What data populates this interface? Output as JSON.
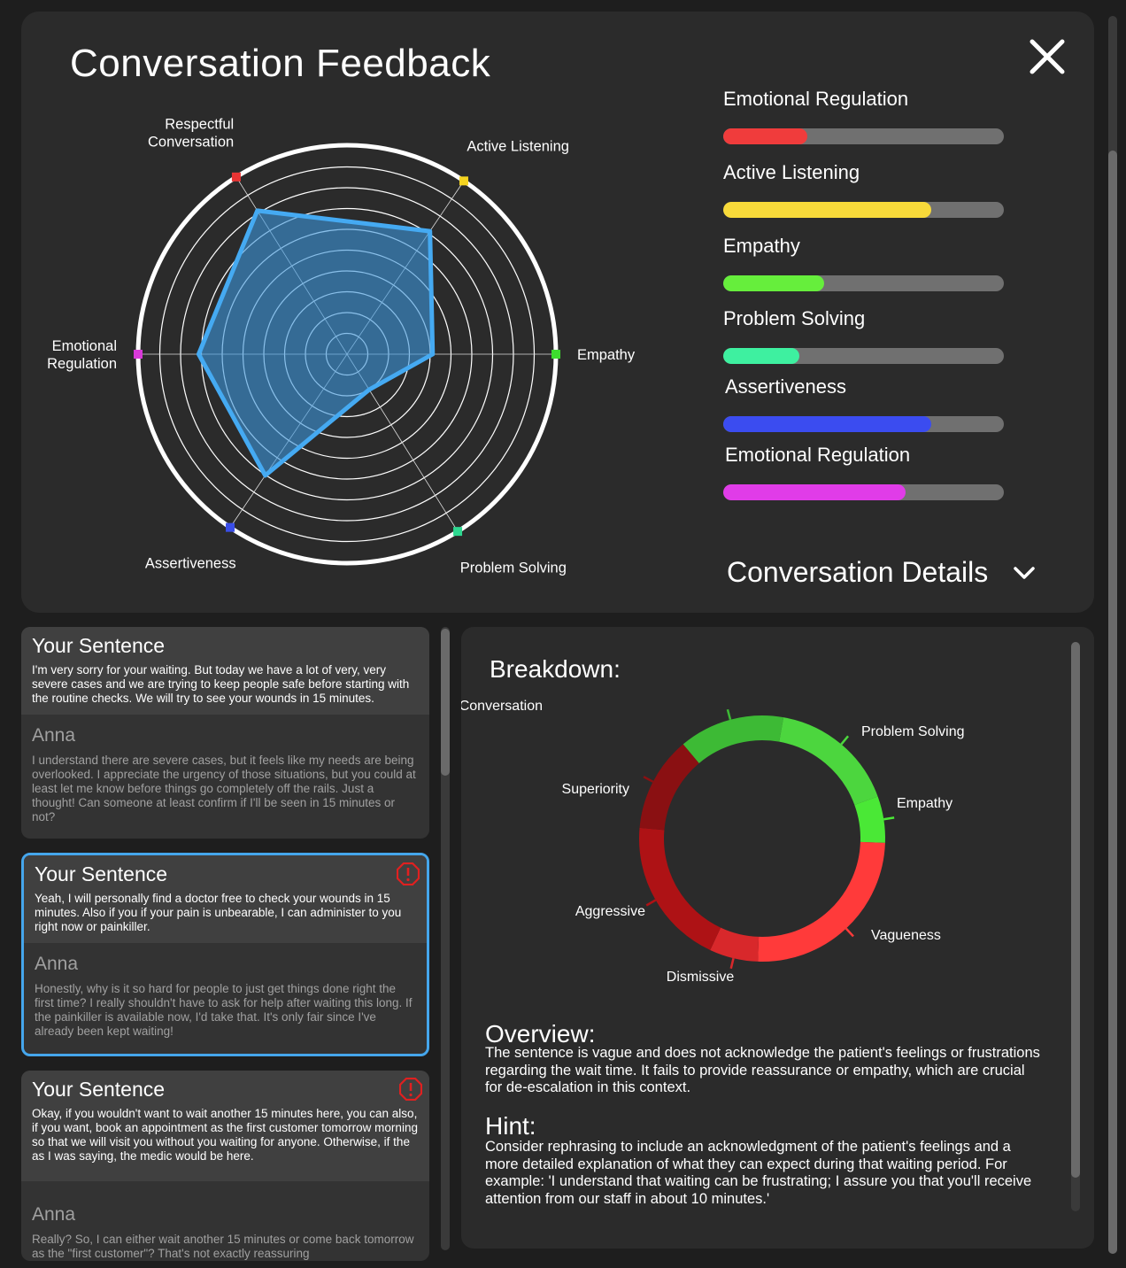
{
  "header": {
    "title": "Conversation Feedback",
    "close_icon": "close-icon"
  },
  "radar": {
    "axes": [
      {
        "label": "Empathy",
        "value": 0.41,
        "color": "#3ddc2e",
        "angle": 0
      },
      {
        "label": "Active Listening",
        "value": 0.71,
        "color": "#f5d420",
        "angle": 56
      },
      {
        "label": "Respectful\nConversation",
        "value": 0.81,
        "color": "#e83434",
        "angle": 122
      },
      {
        "label": "Emotional\nRegulation",
        "value": 0.71,
        "color": "#d83ad8",
        "angle": 180
      },
      {
        "label": "Assertiveness",
        "value": 0.7,
        "color": "#3a4ee8",
        "angle": 236
      },
      {
        "label": "Problem Solving",
        "value": 0.2,
        "color": "#2ed890",
        "angle": 302
      }
    ]
  },
  "bars": [
    {
      "label": "Emotional Regulation",
      "value": 0.3,
      "color": "#f03c3c"
    },
    {
      "label": "Active Listening",
      "value": 0.74,
      "color": "#f8da3a"
    },
    {
      "label": "Empathy",
      "value": 0.36,
      "color": "#66ee3c"
    },
    {
      "label": "Problem Solving",
      "value": 0.27,
      "color": "#3ef0a0"
    },
    {
      "label": "Assertiveness",
      "value": 0.74,
      "color": "#3b4cf0"
    },
    {
      "label": "Emotional Regulation",
      "value": 0.65,
      "color": "#e03ce8"
    }
  ],
  "details_label": "Conversation Details",
  "conversation": [
    {
      "you_title": "Your Sentence",
      "you_text": "I'm very sorry for your waiting. But today we have a lot of very, very severe cases and we are trying to keep people safe before starting with the routine checks. We will try to see your wounds in 15 minutes.",
      "anna_title": "Anna",
      "anna_text": "I understand there are severe cases, but it feels like my needs are being overlooked. I appreciate the urgency of those situations, but you could at least let me know before things go completely off the rails. Just a thought! Can someone at least confirm if I'll be seen in 15 minutes or not?",
      "warning": false
    },
    {
      "you_title": "Your Sentence",
      "you_text": "Yeah, I will personally find a doctor free to check your wounds in 15 minutes. Also if you if your pain is unbearable, I can administer to you right now or painkiller.",
      "anna_title": "Anna",
      "anna_text": "Honestly, why is it so hard for people to just get things done right the first time? I really shouldn't have to ask for help after waiting this long. If the painkiller is available now, I'd take that. It's only fair since I've already been kept waiting!",
      "warning": true
    },
    {
      "you_title": "Your Sentence",
      "you_text": "Okay, if you wouldn't want to wait another 15 minutes here, you can also, if you want, book an appointment as the first customer tomorrow morning so that we will visit you without you waiting for anyone. Otherwise, if the as I was saying, the medic would be here.",
      "anna_title": "Anna",
      "anna_text": "Really? So, I can either wait another 15 minutes or come back tomorrow as the \"first customer\"? That's not exactly reassuring",
      "warning": true
    }
  ],
  "breakdown": {
    "title": "Breakdown:",
    "segments": [
      {
        "label": "Emotional Conversation",
        "value": 50,
        "color": "#3dba35"
      },
      {
        "label": "Problem Solving",
        "value": 60,
        "color": "#4cd63e"
      },
      {
        "label": "Empathy",
        "value": 22,
        "color": "#4ae836"
      },
      {
        "label": "Vagueness",
        "value": 90,
        "color": "#ff3a3a"
      },
      {
        "label": "Dismissive",
        "value": 23,
        "color": "#d8282b"
      },
      {
        "label": "Aggressive",
        "value": 70,
        "color": "#ae1215"
      },
      {
        "label": "Superiority",
        "value": 45,
        "color": "#8a1012"
      }
    ],
    "overview_title": "Overview:",
    "overview_text": "The sentence is vague and does not acknowledge the patient's feelings or frustrations regarding the wait time. It fails to provide reassurance or empathy, which are crucial for de-escalation in this context.",
    "hint_title": "Hint:",
    "hint_text": "Consider rephrasing to include an acknowledgment of the patient's feelings and a more detailed explanation of what they can expect during that waiting period. For example: 'I understand that waiting can be frustrating; I assure you that you'll receive attention from our staff in about 10 minutes.'"
  }
}
